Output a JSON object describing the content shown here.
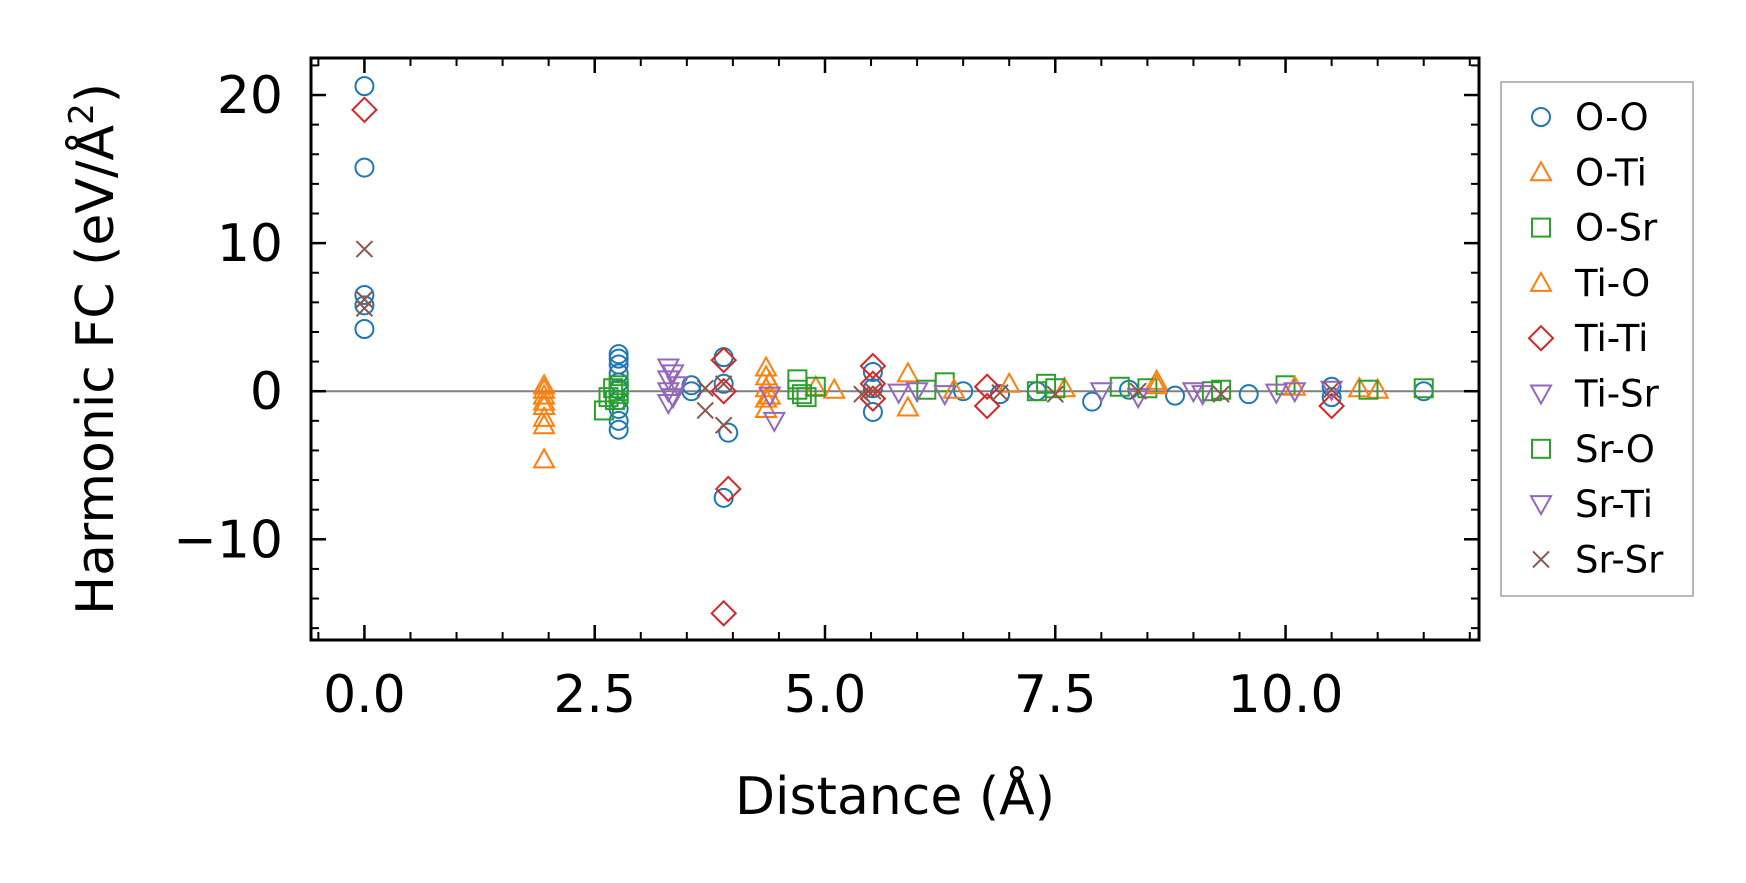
{
  "chart_data": {
    "type": "scatter",
    "xlabel": "Distance (Å)",
    "ylabel": "Harmonic FC (eV/Å²)",
    "ylabel_parts": {
      "main": "Harmonic FC (eV/Å",
      "sup": "2",
      "close": ")"
    },
    "xlim": [
      -0.58,
      12.1
    ],
    "ylim": [
      -16.8,
      22.5
    ],
    "x_ticks": [
      0.0,
      2.5,
      5.0,
      7.5,
      10.0
    ],
    "x_tick_labels": [
      "0.0",
      "2.5",
      "5.0",
      "7.5",
      "10.0"
    ],
    "y_ticks": [
      -10,
      0,
      10,
      20
    ],
    "y_tick_labels": [
      "−10",
      "0",
      "10",
      "20"
    ],
    "x_minor_step": 0.5,
    "y_minor_step": 2,
    "zero_line": 0,
    "grid": false,
    "legend_position": "outside-right",
    "colors": {
      "blue": "#1f77b4",
      "orange": "#ff7f0e",
      "green": "#2ca02c",
      "red": "#d62728",
      "purple": "#9467bd",
      "brown": "#8c564b",
      "zero_line": "#808080",
      "legend_border": "#a0a0a0"
    },
    "series": [
      {
        "name": "O-O",
        "marker": "circle",
        "color": "#1f77b4",
        "points": [
          [
            0.0,
            20.6
          ],
          [
            0.0,
            15.1
          ],
          [
            0.0,
            6.5
          ],
          [
            0.0,
            5.8
          ],
          [
            0.0,
            4.2
          ],
          [
            2.76,
            2.5
          ],
          [
            2.76,
            2.2
          ],
          [
            2.76,
            1.8
          ],
          [
            2.76,
            1.2
          ],
          [
            2.76,
            0.6
          ],
          [
            2.76,
            0.1
          ],
          [
            2.76,
            -0.6
          ],
          [
            2.76,
            -1.2
          ],
          [
            2.76,
            -2.0
          ],
          [
            2.76,
            -2.6
          ],
          [
            3.55,
            0.4
          ],
          [
            3.55,
            0.0
          ],
          [
            3.9,
            2.3
          ],
          [
            3.9,
            0.5
          ],
          [
            3.9,
            -7.2
          ],
          [
            3.95,
            -2.8
          ],
          [
            5.52,
            1.3
          ],
          [
            5.52,
            0.2
          ],
          [
            5.52,
            -1.4
          ],
          [
            6.5,
            0.0
          ],
          [
            6.9,
            -0.2
          ],
          [
            7.3,
            0.0
          ],
          [
            7.9,
            -0.7
          ],
          [
            8.3,
            0.1
          ],
          [
            8.8,
            -0.3
          ],
          [
            9.6,
            -0.2
          ],
          [
            10.5,
            -0.4
          ],
          [
            10.5,
            0.3
          ],
          [
            11.5,
            0.0
          ]
        ]
      },
      {
        "name": "O-Ti",
        "marker": "triangle-up",
        "color": "#ff7f0e",
        "points": [
          [
            1.95,
            0.4
          ],
          [
            1.95,
            -0.3
          ],
          [
            1.95,
            -1.0
          ],
          [
            1.95,
            -1.8
          ],
          [
            1.95,
            -2.3
          ],
          [
            1.95,
            -4.6
          ],
          [
            4.36,
            1.6
          ],
          [
            4.36,
            1.0
          ],
          [
            4.36,
            0.2
          ],
          [
            4.36,
            -0.5
          ],
          [
            4.36,
            -1.2
          ],
          [
            4.9,
            0.3
          ],
          [
            5.1,
            0.1
          ],
          [
            5.9,
            1.2
          ],
          [
            5.9,
            -1.1
          ],
          [
            7.0,
            0.5
          ],
          [
            7.6,
            0.2
          ],
          [
            8.6,
            0.7
          ],
          [
            10.8,
            0.2
          ],
          [
            11.0,
            0.1
          ]
        ]
      },
      {
        "name": "O-Sr",
        "marker": "square",
        "color": "#2ca02c",
        "points": [
          [
            2.6,
            -1.3
          ],
          [
            2.65,
            -0.4
          ],
          [
            2.7,
            0.2
          ],
          [
            2.76,
            0.4
          ],
          [
            2.76,
            -0.2
          ],
          [
            2.76,
            0.0
          ],
          [
            4.7,
            0.8
          ],
          [
            4.7,
            0.1
          ],
          [
            4.8,
            -0.4
          ],
          [
            4.9,
            0.3
          ],
          [
            6.1,
            0.1
          ],
          [
            6.3,
            0.6
          ],
          [
            7.3,
            0.0
          ],
          [
            7.4,
            0.5
          ],
          [
            8.2,
            0.3
          ],
          [
            8.5,
            0.2
          ],
          [
            9.2,
            0.0
          ],
          [
            10.0,
            0.4
          ],
          [
            10.9,
            0.1
          ],
          [
            11.5,
            0.2
          ]
        ]
      },
      {
        "name": "Ti-O",
        "marker": "triangle-up",
        "color": "#ff7f0e",
        "points": [
          [
            1.95,
            0.1
          ],
          [
            1.95,
            -0.7
          ],
          [
            4.4,
            0.6
          ],
          [
            4.4,
            -0.3
          ],
          [
            6.4,
            0.1
          ],
          [
            8.6,
            0.4
          ],
          [
            10.1,
            0.3
          ]
        ]
      },
      {
        "name": "Ti-Ti",
        "marker": "diamond",
        "color": "#d62728",
        "points": [
          [
            0.0,
            19.0
          ],
          [
            3.9,
            2.1
          ],
          [
            3.9,
            0.0
          ],
          [
            3.9,
            -15.0
          ],
          [
            3.95,
            -6.6
          ],
          [
            5.52,
            1.7
          ],
          [
            5.52,
            0.5
          ],
          [
            5.52,
            -0.5
          ],
          [
            6.76,
            0.3
          ],
          [
            6.76,
            -1.0
          ],
          [
            10.5,
            -1.0
          ]
        ]
      },
      {
        "name": "Ti-Sr",
        "marker": "triangle-down",
        "color": "#9467bd",
        "points": [
          [
            3.3,
            1.6
          ],
          [
            3.3,
            0.8
          ],
          [
            3.3,
            0.0
          ],
          [
            3.3,
            -0.8
          ],
          [
            3.35,
            1.2
          ],
          [
            3.35,
            -0.4
          ],
          [
            4.4,
            -0.3
          ],
          [
            4.45,
            -2.0
          ],
          [
            6.0,
            0.0
          ],
          [
            6.3,
            -0.2
          ],
          [
            8.0,
            0.0
          ],
          [
            8.4,
            -0.4
          ],
          [
            9.1,
            -0.2
          ],
          [
            9.9,
            -0.1
          ],
          [
            10.5,
            0.1
          ]
        ]
      },
      {
        "name": "Sr-O",
        "marker": "square",
        "color": "#2ca02c",
        "points": [
          [
            2.72,
            -0.6
          ],
          [
            4.75,
            -0.2
          ],
          [
            7.5,
            0.2
          ],
          [
            9.3,
            0.1
          ]
        ]
      },
      {
        "name": "Sr-Ti",
        "marker": "triangle-down",
        "color": "#9467bd",
        "points": [
          [
            3.4,
            0.4
          ],
          [
            5.8,
            -0.1
          ],
          [
            9.0,
            0.0
          ],
          [
            10.1,
            0.0
          ]
        ]
      },
      {
        "name": "Sr-Sr",
        "marker": "x",
        "color": "#8c564b",
        "points": [
          [
            0.0,
            9.6
          ],
          [
            0.0,
            6.2
          ],
          [
            0.0,
            5.6
          ],
          [
            3.7,
            0.2
          ],
          [
            3.7,
            -1.3
          ],
          [
            3.9,
            0.5
          ],
          [
            3.9,
            -2.3
          ],
          [
            5.52,
            0.0
          ],
          [
            5.4,
            -0.2
          ],
          [
            6.9,
            -0.1
          ],
          [
            7.5,
            -0.2
          ],
          [
            8.4,
            0.0
          ],
          [
            9.3,
            -0.2
          ],
          [
            10.5,
            0.1
          ]
        ]
      }
    ]
  }
}
